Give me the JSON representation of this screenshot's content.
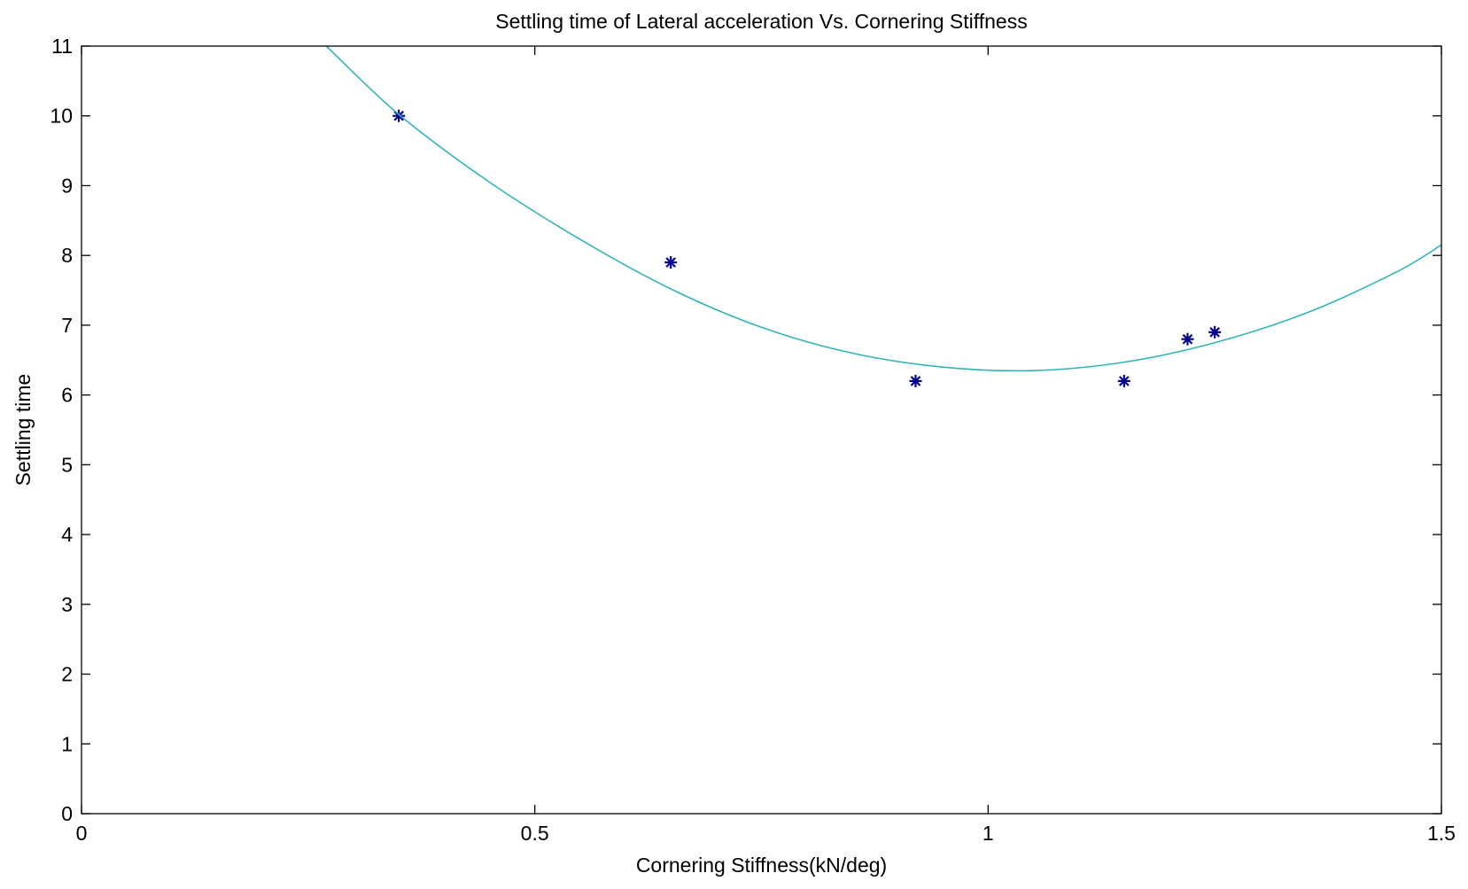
{
  "chart_data": {
    "type": "scatter",
    "title": "Settling time of Lateral acceleration Vs. Cornering Stiffness",
    "xlabel": "Cornering Stiffness(kN/deg)",
    "ylabel": "Settling time",
    "xlim": [
      0,
      1.5
    ],
    "ylim": [
      0,
      11
    ],
    "xticks": [
      0,
      0.5,
      1,
      1.5
    ],
    "xtick_labels": [
      "0",
      "0.5",
      "1",
      "1.5"
    ],
    "yticks": [
      0,
      1,
      2,
      3,
      4,
      5,
      6,
      7,
      8,
      9,
      10,
      11
    ],
    "ytick_labels": [
      "0",
      "1",
      "2",
      "3",
      "4",
      "5",
      "6",
      "7",
      "8",
      "9",
      "10",
      "11"
    ],
    "grid": false,
    "legend": false,
    "series": [
      {
        "kind": "scatter",
        "marker": "asterisk",
        "color": "#00008b",
        "x": [
          0.35,
          0.65,
          0.92,
          1.15,
          1.22,
          1.25
        ],
        "y": [
          10.0,
          7.9,
          6.2,
          6.2,
          6.8,
          6.9
        ]
      },
      {
        "kind": "line",
        "color": "#33b5b5",
        "x": [
          0.27,
          0.35,
          0.45,
          0.55,
          0.65,
          0.75,
          0.85,
          0.95,
          1.05,
          1.15,
          1.25,
          1.35,
          1.45,
          1.5
        ],
        "y": [
          11.0,
          10.02,
          9.05,
          8.23,
          7.52,
          6.97,
          6.6,
          6.4,
          6.35,
          6.47,
          6.75,
          7.17,
          7.76,
          8.15
        ]
      }
    ]
  }
}
